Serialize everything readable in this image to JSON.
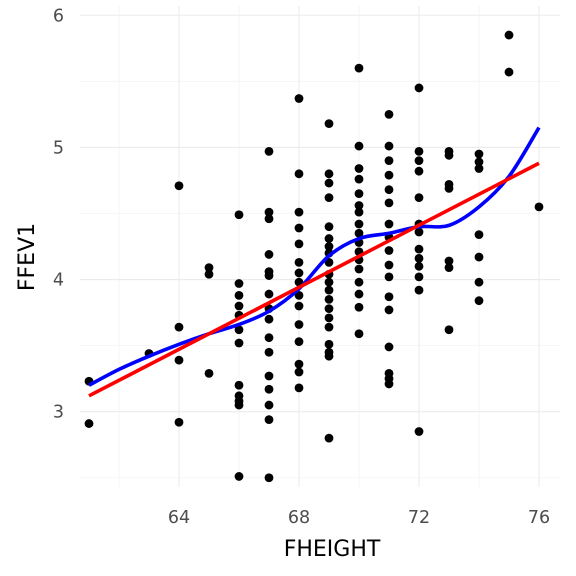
{
  "chart_data": {
    "type": "scatter",
    "title": "",
    "xlabel": "FHEIGHT",
    "ylabel": "FFEV1",
    "xlim": [
      60.7,
      76.7
    ],
    "ylim": [
      2.43,
      6.07
    ],
    "x_ticks": [
      64,
      68,
      72,
      76
    ],
    "y_ticks": [
      3,
      4,
      5,
      6
    ],
    "x_tick_labels": [
      "64",
      "68",
      "72",
      "76"
    ],
    "y_tick_labels": [
      "3",
      "4",
      "5",
      "6"
    ],
    "grid": true,
    "legend": "none",
    "points": [
      [
        61,
        3.23
      ],
      [
        61,
        2.91
      ],
      [
        63,
        3.44
      ],
      [
        64,
        4.71
      ],
      [
        64,
        3.64
      ],
      [
        64,
        3.39
      ],
      [
        64,
        2.92
      ],
      [
        65,
        4.09
      ],
      [
        65,
        4.04
      ],
      [
        65,
        3.29
      ],
      [
        66,
        4.49
      ],
      [
        66,
        3.97
      ],
      [
        66,
        3.88
      ],
      [
        66,
        3.8
      ],
      [
        66,
        3.73
      ],
      [
        66,
        3.62
      ],
      [
        66,
        3.52
      ],
      [
        66,
        3.2
      ],
      [
        66,
        3.12
      ],
      [
        66,
        3.08
      ],
      [
        66,
        3.05
      ],
      [
        66,
        2.51
      ],
      [
        67,
        4.97
      ],
      [
        67,
        4.51
      ],
      [
        67,
        4.46
      ],
      [
        67,
        4.19
      ],
      [
        67,
        4.06
      ],
      [
        67,
        4.03
      ],
      [
        67,
        3.89
      ],
      [
        67,
        3.78
      ],
      [
        67,
        3.7
      ],
      [
        67,
        3.56
      ],
      [
        67,
        3.45
      ],
      [
        67,
        3.27
      ],
      [
        67,
        3.17
      ],
      [
        67,
        3.05
      ],
      [
        67,
        2.94
      ],
      [
        67,
        2.5
      ],
      [
        68,
        5.37
      ],
      [
        68,
        4.8
      ],
      [
        68,
        4.51
      ],
      [
        68,
        4.39
      ],
      [
        68,
        4.27
      ],
      [
        68,
        4.13
      ],
      [
        68,
        4.05
      ],
      [
        68,
        3.98
      ],
      [
        68,
        3.88
      ],
      [
        68,
        3.8
      ],
      [
        68,
        3.66
      ],
      [
        68,
        3.53
      ],
      [
        68,
        3.36
      ],
      [
        68,
        3.3
      ],
      [
        68,
        3.18
      ],
      [
        69,
        5.18
      ],
      [
        69,
        4.8
      ],
      [
        69,
        4.73
      ],
      [
        69,
        4.62
      ],
      [
        69,
        4.4
      ],
      [
        69,
        4.31
      ],
      [
        69,
        4.25
      ],
      [
        69,
        4.2
      ],
      [
        69,
        4.13
      ],
      [
        69,
        4.04
      ],
      [
        69,
        3.98
      ],
      [
        69,
        3.92
      ],
      [
        69,
        3.85
      ],
      [
        69,
        3.78
      ],
      [
        69,
        3.71
      ],
      [
        69,
        3.64
      ],
      [
        69,
        3.51
      ],
      [
        69,
        3.45
      ],
      [
        69,
        3.42
      ],
      [
        69,
        2.8
      ],
      [
        70,
        5.6
      ],
      [
        70,
        5.01
      ],
      [
        70,
        4.84
      ],
      [
        70,
        4.76
      ],
      [
        70,
        4.65
      ],
      [
        70,
        4.56
      ],
      [
        70,
        4.51
      ],
      [
        70,
        4.42
      ],
      [
        70,
        4.35
      ],
      [
        70,
        4.28
      ],
      [
        70,
        4.21
      ],
      [
        70,
        4.15
      ],
      [
        70,
        4.08
      ],
      [
        70,
        3.98
      ],
      [
        70,
        3.89
      ],
      [
        70,
        3.79
      ],
      [
        70,
        3.59
      ],
      [
        71,
        5.25
      ],
      [
        71,
        5.01
      ],
      [
        71,
        4.9
      ],
      [
        71,
        4.79
      ],
      [
        71,
        4.68
      ],
      [
        71,
        4.58
      ],
      [
        71,
        4.42
      ],
      [
        71,
        4.32
      ],
      [
        71,
        4.22
      ],
      [
        71,
        4.11
      ],
      [
        71,
        4.02
      ],
      [
        71,
        3.87
      ],
      [
        71,
        3.77
      ],
      [
        71,
        3.49
      ],
      [
        71,
        3.29
      ],
      [
        71,
        3.25
      ],
      [
        71,
        3.21
      ],
      [
        72,
        5.45
      ],
      [
        72,
        4.97
      ],
      [
        72,
        4.9
      ],
      [
        72,
        4.82
      ],
      [
        72,
        4.62
      ],
      [
        72,
        4.42
      ],
      [
        72,
        4.36
      ],
      [
        72,
        4.23
      ],
      [
        72,
        4.16
      ],
      [
        72,
        4.1
      ],
      [
        72,
        4.02
      ],
      [
        72,
        3.92
      ],
      [
        72,
        2.85
      ],
      [
        73,
        4.97
      ],
      [
        73,
        4.94
      ],
      [
        73,
        4.72
      ],
      [
        73,
        4.69
      ],
      [
        73,
        4.14
      ],
      [
        73,
        4.09
      ],
      [
        73,
        3.62
      ],
      [
        74,
        4.95
      ],
      [
        74,
        4.89
      ],
      [
        74,
        4.84
      ],
      [
        74,
        4.34
      ],
      [
        74,
        4.17
      ],
      [
        74,
        3.98
      ],
      [
        74,
        3.84
      ],
      [
        75,
        5.85
      ],
      [
        75,
        5.57
      ],
      [
        76,
        4.55
      ]
    ],
    "series": [
      {
        "type": "line",
        "color": "#0000ff",
        "x": [
          61,
          62,
          63,
          64,
          65,
          66,
          67,
          68,
          69,
          70,
          71,
          72,
          73,
          74,
          75,
          76
        ],
        "y": [
          3.2,
          3.32,
          3.42,
          3.51,
          3.59,
          3.66,
          3.76,
          3.93,
          4.18,
          4.31,
          4.35,
          4.4,
          4.41,
          4.55,
          4.78,
          5.15
        ]
      },
      {
        "type": "line",
        "color": "#ff0000",
        "x": [
          61,
          76
        ],
        "y": [
          3.12,
          4.88
        ]
      }
    ]
  }
}
